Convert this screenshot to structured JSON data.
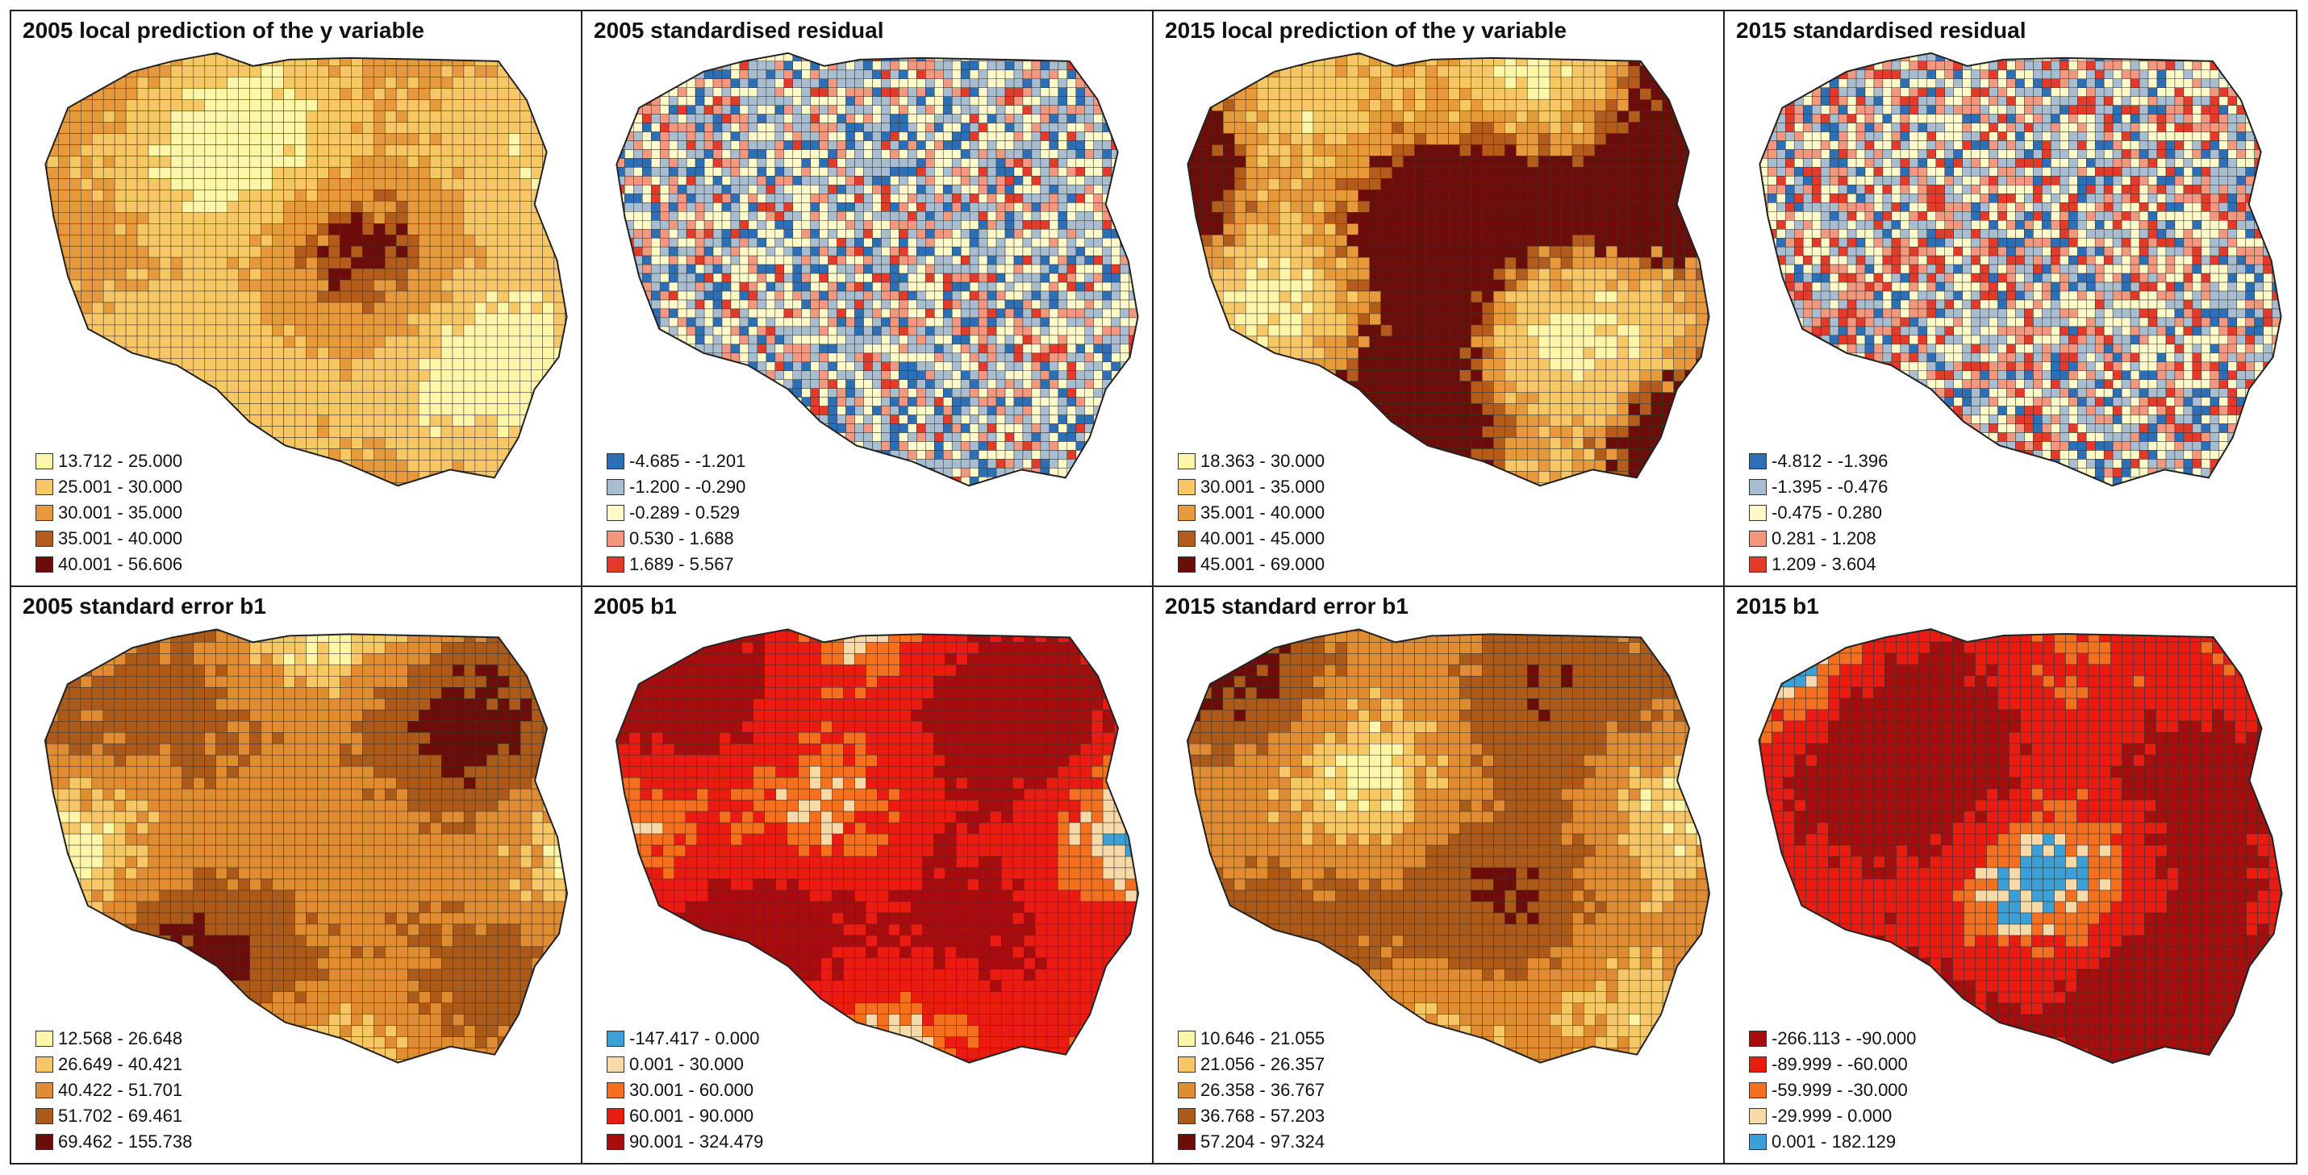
{
  "panels": [
    {
      "title": "2005 local prediction of the y variable",
      "pattern": "smooth",
      "legend": [
        {
          "label": "13.712 - 25.000",
          "color": "#fdf6a8"
        },
        {
          "label": "25.001 - 30.000",
          "color": "#f7c765"
        },
        {
          "label": "30.001 - 35.000",
          "color": "#e69a3c"
        },
        {
          "label": "35.001 - 40.000",
          "color": "#b45c1b"
        },
        {
          "label": "40.001 - 56.606",
          "color": "#6b0d08"
        }
      ],
      "mix": [
        0.25,
        0.3,
        0.28,
        0.12,
        0.05
      ]
    },
    {
      "title": "2005 standardised residual",
      "pattern": "random",
      "legend": [
        {
          "label": "-4.685 - -1.201",
          "color": "#2c6fb6"
        },
        {
          "label": "-1.200 - -0.290",
          "color": "#a9bdd0"
        },
        {
          "label": "-0.289 - 0.529",
          "color": "#fdf9c9"
        },
        {
          "label": "0.530 - 1.688",
          "color": "#f4977f"
        },
        {
          "label": "1.689 - 5.567",
          "color": "#e33a2a"
        }
      ],
      "mix": [
        0.15,
        0.3,
        0.3,
        0.17,
        0.08
      ]
    },
    {
      "title": "2015 local prediction of the y variable",
      "pattern": "smooth",
      "legend": [
        {
          "label": "18.363 - 30.000",
          "color": "#fdf6a8"
        },
        {
          "label": "30.001 - 35.000",
          "color": "#f7c765"
        },
        {
          "label": "35.001 - 40.000",
          "color": "#e69a3c"
        },
        {
          "label": "40.001 - 45.000",
          "color": "#b45c1b"
        },
        {
          "label": "45.001 - 69.000",
          "color": "#6b0d08"
        }
      ],
      "mix": [
        0.15,
        0.2,
        0.12,
        0.08,
        0.45
      ]
    },
    {
      "title": "2015 standardised residual",
      "pattern": "random",
      "legend": [
        {
          "label": "-4.812 - -1.396",
          "color": "#2c6fb6"
        },
        {
          "label": "-1.395 - -0.476",
          "color": "#a9bdd0"
        },
        {
          "label": "-0.475 - 0.280",
          "color": "#fdf9c9"
        },
        {
          "label": "0.281 - 1.208",
          "color": "#f4977f"
        },
        {
          "label": "1.209 - 3.604",
          "color": "#e33a2a"
        }
      ],
      "mix": [
        0.12,
        0.25,
        0.28,
        0.2,
        0.15
      ]
    },
    {
      "title": "2005 standard error b1",
      "pattern": "smooth",
      "legend": [
        {
          "label": "12.568 - 26.648",
          "color": "#fdf6a8"
        },
        {
          "label": "26.649 - 40.421",
          "color": "#f7c765"
        },
        {
          "label": "40.422 - 51.701",
          "color": "#e08c32"
        },
        {
          "label": "51.702 - 69.461",
          "color": "#ab5a1a"
        },
        {
          "label": "69.462 - 155.738",
          "color": "#6b0d08"
        }
      ],
      "mix": [
        0.12,
        0.15,
        0.3,
        0.3,
        0.13
      ]
    },
    {
      "title": "2005 b1",
      "pattern": "smooth",
      "legend": [
        {
          "label": "-147.417 - 0.000",
          "color": "#3aa0d6"
        },
        {
          "label": "0.001 - 30.000",
          "color": "#f8d9a8"
        },
        {
          "label": "30.001 - 60.000",
          "color": "#f4701f"
        },
        {
          "label": "60.001 - 90.000",
          "color": "#ea1c12"
        },
        {
          "label": "90.001 - 324.479",
          "color": "#a80d0d"
        }
      ],
      "mix": [
        0.06,
        0.14,
        0.12,
        0.3,
        0.38
      ]
    },
    {
      "title": "2015 standard error b1",
      "pattern": "smooth",
      "legend": [
        {
          "label": "10.646 - 21.055",
          "color": "#fdf6a8"
        },
        {
          "label": "21.056 - 26.357",
          "color": "#f7c765"
        },
        {
          "label": "26.358 - 36.767",
          "color": "#e08c32"
        },
        {
          "label": "36.768 - 57.203",
          "color": "#ab5a1a"
        },
        {
          "label": "57.204 - 97.324",
          "color": "#6b0d08"
        }
      ],
      "mix": [
        0.12,
        0.15,
        0.3,
        0.3,
        0.13
      ]
    },
    {
      "title": "2015 b1",
      "pattern": "smooth",
      "legend": [
        {
          "label": "-266.113 - -90.000",
          "color": "#a80d0d"
        },
        {
          "label": "-89.999 - -60.000",
          "color": "#ea1c12"
        },
        {
          "label": "-59.999 - -30.000",
          "color": "#f4701f"
        },
        {
          "label": "-29.999 - 0.000",
          "color": "#f8d9a8"
        },
        {
          "label": "0.001 - 182.129",
          "color": "#3aa0d6"
        }
      ],
      "mix": [
        0.45,
        0.25,
        0.15,
        0.07,
        0.08
      ]
    }
  ]
}
